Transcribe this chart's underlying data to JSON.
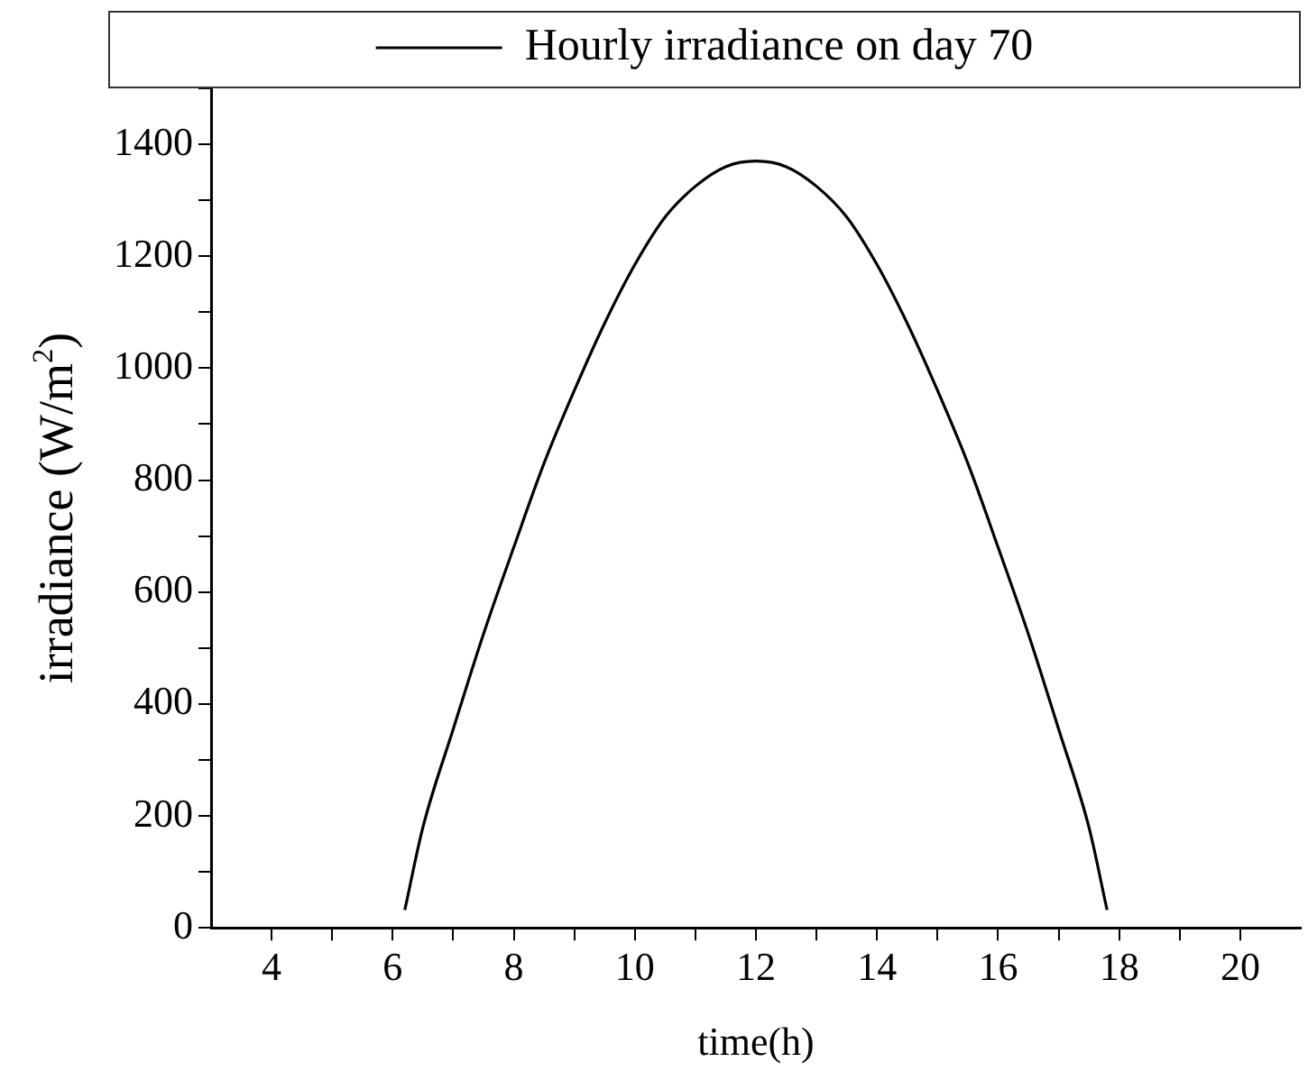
{
  "chart_data": {
    "type": "line",
    "xlabel": "time(h)",
    "ylabel": "irradiance (W/m$^{2}$)",
    "legend": "top",
    "xlim": [
      3,
      21
    ],
    "xticks": [
      4,
      {
        "value": 5,
        "label": null
      },
      6,
      {
        "value": 7,
        "label": null
      },
      8,
      {
        "value": 9,
        "label": null
      },
      10,
      {
        "value": 11,
        "label": null
      },
      12,
      {
        "value": 13,
        "label": null
      },
      14,
      {
        "value": 15,
        "label": null
      },
      16,
      {
        "value": 17,
        "label": null
      },
      18,
      {
        "value": 19,
        "label": null
      },
      20
    ],
    "ylim": [
      0,
      1500
    ],
    "yticks": [
      0,
      {
        "value": 100,
        "label": null
      },
      200,
      {
        "value": 300,
        "label": null
      },
      400,
      {
        "value": 500,
        "label": null
      },
      600,
      {
        "value": 700,
        "label": null
      },
      800,
      {
        "value": 900,
        "label": null
      },
      1000,
      {
        "value": 1100,
        "label": null
      },
      1200,
      {
        "value": 1300,
        "label": null
      },
      1400,
      {
        "value": 1500,
        "label": null
      }
    ],
    "grid": false,
    "marker": "none",
    "line_style": "solid",
    "series": [
      {
        "name": "Hourly irradiance on day 70",
        "color": "#000000",
        "x": [
          6.2,
          6.5,
          7,
          7.5,
          8,
          8.5,
          9,
          9.5,
          10,
          10.5,
          11,
          11.5,
          12,
          12.5,
          13,
          13.5,
          14,
          14.5,
          15,
          15.5,
          16,
          16.5,
          17,
          17.5,
          17.8
        ],
        "values": [
          32,
          180,
          355,
          525,
          680,
          830,
          960,
          1080,
          1185,
          1270,
          1325,
          1360,
          1370,
          1360,
          1325,
          1270,
          1185,
          1080,
          960,
          830,
          680,
          525,
          355,
          180,
          32
        ]
      }
    ]
  }
}
